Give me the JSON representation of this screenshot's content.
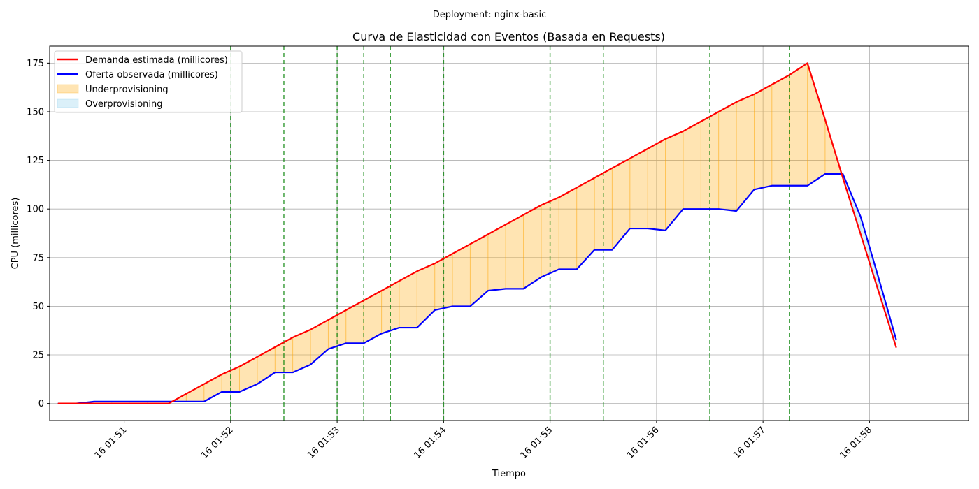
{
  "suptitle": "Deployment: nginx-basic",
  "chart_data": {
    "type": "line",
    "title": "Curva de Elasticidad con Eventos (Basada en Requests)",
    "xlabel": "Tiempo",
    "ylabel": "CPU (millicores)",
    "x_unit": "minutes after 16 01:50",
    "xlim": [
      0.3,
      8.93
    ],
    "ylim": [
      -8.75,
      183.75
    ],
    "grid": true,
    "legend_position": "top-left",
    "x_ticks": [
      {
        "value": 1,
        "label": "16 01:51"
      },
      {
        "value": 2,
        "label": "16 01:52"
      },
      {
        "value": 3,
        "label": "16 01:53"
      },
      {
        "value": 4,
        "label": "16 01:54"
      },
      {
        "value": 5,
        "label": "16 01:55"
      },
      {
        "value": 6,
        "label": "16 01:56"
      },
      {
        "value": 7,
        "label": "16 01:57"
      },
      {
        "value": 8,
        "label": "16 01:58"
      }
    ],
    "y_ticks": [
      0,
      25,
      50,
      75,
      100,
      125,
      150,
      175
    ],
    "series": [
      {
        "name": "Demanda estimada (millicores)",
        "color": "#ff0000",
        "x": [
          0.383,
          0.55,
          0.717,
          0.883,
          1.05,
          1.217,
          1.417,
          1.583,
          1.75,
          1.917,
          2.083,
          2.25,
          2.417,
          2.583,
          2.75,
          2.917,
          3.083,
          3.25,
          3.417,
          3.583,
          3.75,
          3.917,
          4.083,
          4.25,
          4.417,
          4.583,
          4.75,
          4.917,
          5.083,
          5.25,
          5.417,
          5.583,
          5.75,
          5.917,
          6.083,
          6.25,
          6.417,
          6.583,
          6.75,
          6.917,
          7.083,
          7.25,
          7.417,
          7.583,
          7.75,
          7.917,
          8.083,
          8.25
        ],
        "values": [
          0,
          0,
          0,
          0,
          0,
          0,
          0,
          5,
          10,
          15,
          19,
          24,
          29,
          34,
          38,
          43,
          48,
          53,
          58,
          63,
          68,
          72,
          77,
          82,
          87,
          92,
          97,
          102,
          106,
          111,
          116,
          121,
          126,
          131,
          136,
          140,
          145,
          150,
          155,
          159,
          164,
          169,
          175,
          146,
          116,
          87,
          58,
          29
        ]
      },
      {
        "name": "Oferta observada (millicores)",
        "color": "#0000ff",
        "x": [
          0.383,
          0.55,
          0.717,
          0.883,
          1.05,
          1.217,
          1.417,
          1.583,
          1.75,
          1.917,
          2.083,
          2.25,
          2.417,
          2.583,
          2.75,
          2.917,
          3.083,
          3.25,
          3.417,
          3.583,
          3.75,
          3.917,
          4.083,
          4.25,
          4.417,
          4.583,
          4.75,
          4.917,
          5.083,
          5.25,
          5.417,
          5.583,
          5.75,
          5.917,
          6.083,
          6.25,
          6.417,
          6.583,
          6.75,
          6.917,
          7.083,
          7.25,
          7.417,
          7.583,
          7.75,
          7.917,
          8.083,
          8.25
        ],
        "values": [
          0,
          0,
          1,
          1,
          1,
          1,
          1,
          1,
          1,
          6,
          6,
          10,
          16,
          16,
          20,
          28,
          31,
          31,
          36,
          39,
          39,
          48,
          50,
          50,
          58,
          59,
          59,
          65,
          69,
          69,
          79,
          79,
          90,
          90,
          89,
          100,
          100,
          100,
          99,
          110,
          112,
          112,
          112,
          118,
          118,
          96,
          65,
          33
        ]
      }
    ],
    "areas": [
      {
        "name": "Underprovisioning",
        "color": "#ffa500"
      },
      {
        "name": "Overprovisioning",
        "color": "#87ceeb"
      }
    ],
    "events": {
      "color": "#008000",
      "x": [
        2.0,
        2.5,
        3.0,
        3.25,
        3.5,
        4.0,
        5.0,
        5.5,
        6.5,
        7.25
      ]
    }
  }
}
